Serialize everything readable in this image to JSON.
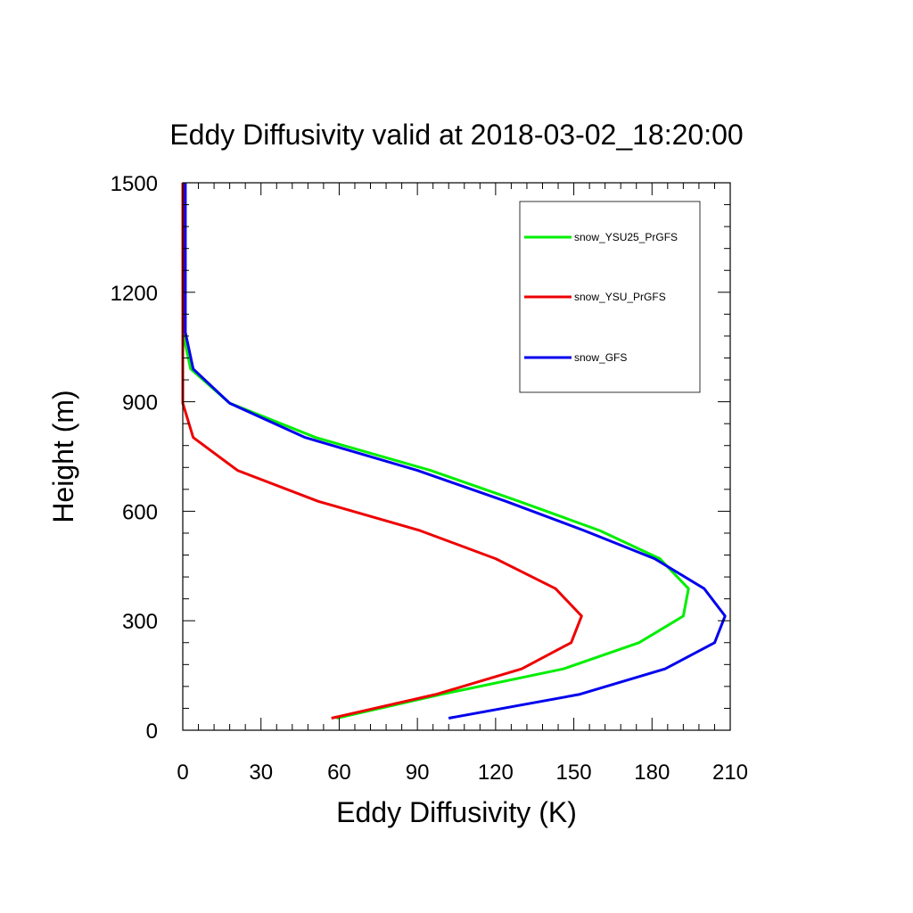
{
  "chart_data": {
    "type": "line",
    "title": "Eddy Diffusivity valid at 2018-03-02_18:20:00",
    "xlabel": "Eddy Diffusivity (K)",
    "ylabel": "Height (m)",
    "xlim": [
      0,
      210
    ],
    "ylim": [
      0,
      1500
    ],
    "xticks": [
      0,
      30,
      60,
      90,
      120,
      150,
      180,
      210
    ],
    "xtick_labels": [
      "0",
      "30",
      "60",
      "90",
      "120",
      "150",
      "180",
      "210"
    ],
    "yticks": [
      0,
      300,
      600,
      900,
      1200,
      1500
    ],
    "ytick_labels": [
      "0",
      "300",
      "600",
      "900",
      "1200",
      "1500"
    ],
    "grid": false,
    "legend_position": "top-right",
    "series": [
      {
        "name": "snow_YSU25_PrGFS",
        "color": "#00ee00",
        "points": [
          [
            59,
            33
          ],
          [
            99,
            98
          ],
          [
            146,
            168
          ],
          [
            175,
            240
          ],
          [
            192,
            313
          ],
          [
            194,
            388
          ],
          [
            183,
            470
          ],
          [
            160,
            547
          ],
          [
            129,
            627
          ],
          [
            95,
            712
          ],
          [
            51,
            802
          ],
          [
            18,
            896
          ],
          [
            3,
            990
          ],
          [
            0,
            1090
          ],
          [
            0.8,
            1200
          ],
          [
            0.8,
            1300
          ],
          [
            0.8,
            1400
          ],
          [
            0.8,
            1500
          ]
        ]
      },
      {
        "name": "snow_YSU_PrGFS",
        "color": "#ee0000",
        "points": [
          [
            57,
            33
          ],
          [
            97,
            98
          ],
          [
            130,
            168
          ],
          [
            149,
            240
          ],
          [
            153,
            313
          ],
          [
            143,
            388
          ],
          [
            120,
            470
          ],
          [
            91,
            547
          ],
          [
            52,
            627
          ],
          [
            21,
            712
          ],
          [
            4,
            802
          ],
          [
            0,
            896
          ],
          [
            0,
            990
          ],
          [
            0,
            1090
          ],
          [
            0,
            1200
          ],
          [
            0,
            1300
          ],
          [
            0,
            1400
          ],
          [
            0,
            1500
          ]
        ]
      },
      {
        "name": "snow_GFS",
        "color": "#0000ee",
        "points": [
          [
            102,
            33
          ],
          [
            152,
            98
          ],
          [
            185,
            168
          ],
          [
            204,
            240
          ],
          [
            208,
            313
          ],
          [
            200,
            388
          ],
          [
            181,
            470
          ],
          [
            154,
            547
          ],
          [
            124,
            627
          ],
          [
            90,
            712
          ],
          [
            47,
            802
          ],
          [
            18,
            896
          ],
          [
            4,
            990
          ],
          [
            1,
            1090
          ],
          [
            1,
            1200
          ],
          [
            1,
            1300
          ],
          [
            1,
            1400
          ],
          [
            1,
            1500
          ]
        ]
      }
    ]
  }
}
